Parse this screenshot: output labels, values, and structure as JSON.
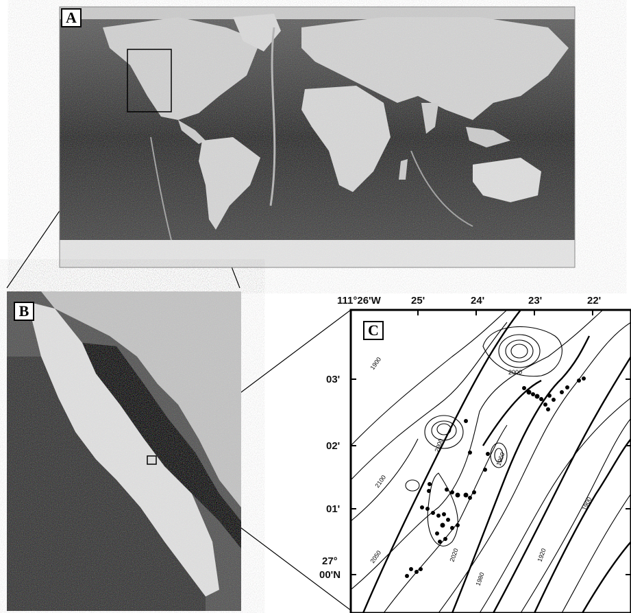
{
  "panels": {
    "a": {
      "label": "A"
    },
    "b": {
      "label": "B"
    },
    "c": {
      "label": "C"
    }
  },
  "map_c": {
    "top_axis_labels": [
      "111°26'W",
      "25'",
      "24'",
      "23'",
      "22'"
    ],
    "left_axis_labels": [
      "03'",
      "02'",
      "01'"
    ],
    "bottom_left_label_line1": "27°",
    "bottom_left_label_line2": "00'N",
    "contour_labels": [
      "1900",
      "1900",
      "2000",
      "2000",
      "2020",
      "1980",
      "1920",
      "2050",
      "2100",
      "1960"
    ]
  },
  "colors": {
    "ocean_dark": "#5a5a5a",
    "land_light": "#d8d8d8",
    "ink": "#000000"
  }
}
